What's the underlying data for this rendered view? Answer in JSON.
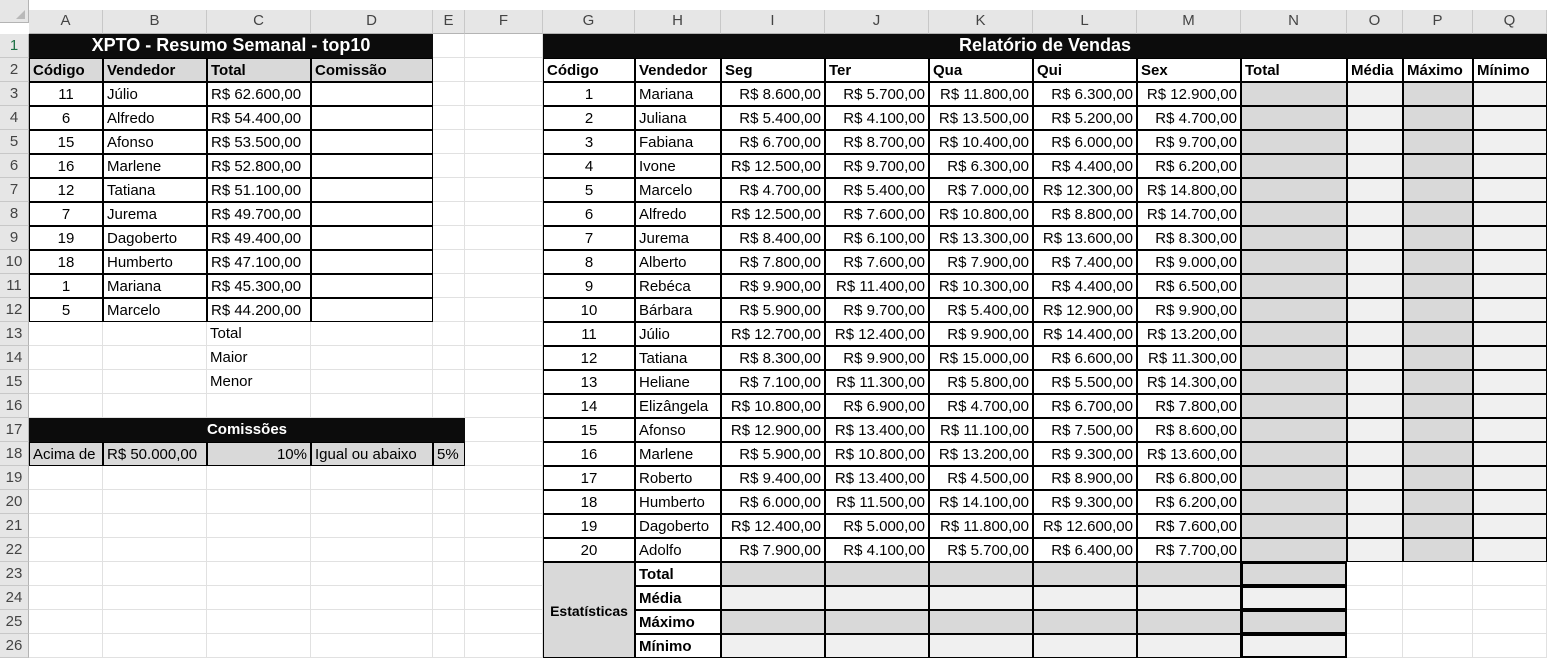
{
  "columns": [
    "A",
    "B",
    "C",
    "D",
    "E",
    "F",
    "G",
    "H",
    "I",
    "J",
    "K",
    "L",
    "M",
    "N",
    "O",
    "P",
    "Q"
  ],
  "rows": [
    "1",
    "2",
    "3",
    "4",
    "5",
    "6",
    "7",
    "8",
    "9",
    "10",
    "11",
    "12",
    "13",
    "14",
    "15",
    "16",
    "17",
    "18",
    "19",
    "20",
    "21",
    "22",
    "23",
    "24",
    "25",
    "26"
  ],
  "left_table": {
    "title": "XPTO - Resumo Semanal - top10",
    "headers": [
      "Código",
      "Vendedor",
      "Total",
      "Comissão"
    ],
    "rows": [
      [
        "11",
        "Júlio",
        "R$ 62.600,00",
        ""
      ],
      [
        "6",
        "Alfredo",
        "R$ 54.400,00",
        ""
      ],
      [
        "15",
        "Afonso",
        "R$ 53.500,00",
        ""
      ],
      [
        "16",
        "Marlene",
        "R$ 52.800,00",
        ""
      ],
      [
        "12",
        "Tatiana",
        "R$ 51.100,00",
        ""
      ],
      [
        "7",
        "Jurema",
        "R$ 49.700,00",
        ""
      ],
      [
        "19",
        "Dagoberto",
        "R$ 49.400,00",
        ""
      ],
      [
        "18",
        "Humberto",
        "R$ 47.100,00",
        ""
      ],
      [
        "1",
        "Mariana",
        "R$ 45.300,00",
        ""
      ],
      [
        "5",
        "Marcelo",
        "R$ 44.200,00",
        ""
      ]
    ],
    "summary_labels": [
      "Total",
      "Maior",
      "Menor"
    ]
  },
  "commissions": {
    "title": "Comissões",
    "above_label": "Acima de",
    "threshold": "R$ 50.000,00",
    "above_rate": "10%",
    "below_label": "Igual ou abaixo",
    "below_rate": "5%"
  },
  "sales_report": {
    "title": "Relatório de Vendas",
    "headers": [
      "Código",
      "Vendedor",
      "Seg",
      "Ter",
      "Qua",
      "Qui",
      "Sex",
      "Total",
      "Média",
      "Máximo",
      "Mínimo"
    ],
    "rows": [
      [
        "1",
        "Mariana",
        "R$ 8.600,00",
        "R$ 5.700,00",
        "R$ 11.800,00",
        "R$ 6.300,00",
        "R$ 12.900,00"
      ],
      [
        "2",
        "Juliana",
        "R$ 5.400,00",
        "R$ 4.100,00",
        "R$ 13.500,00",
        "R$ 5.200,00",
        "R$ 4.700,00"
      ],
      [
        "3",
        "Fabiana",
        "R$ 6.700,00",
        "R$ 8.700,00",
        "R$ 10.400,00",
        "R$ 6.000,00",
        "R$ 9.700,00"
      ],
      [
        "4",
        "Ivone",
        "R$ 12.500,00",
        "R$ 9.700,00",
        "R$ 6.300,00",
        "R$ 4.400,00",
        "R$ 6.200,00"
      ],
      [
        "5",
        "Marcelo",
        "R$ 4.700,00",
        "R$ 5.400,00",
        "R$ 7.000,00",
        "R$ 12.300,00",
        "R$ 14.800,00"
      ],
      [
        "6",
        "Alfredo",
        "R$ 12.500,00",
        "R$ 7.600,00",
        "R$ 10.800,00",
        "R$ 8.800,00",
        "R$ 14.700,00"
      ],
      [
        "7",
        "Jurema",
        "R$ 8.400,00",
        "R$ 6.100,00",
        "R$ 13.300,00",
        "R$ 13.600,00",
        "R$ 8.300,00"
      ],
      [
        "8",
        "Alberto",
        "R$ 7.800,00",
        "R$ 7.600,00",
        "R$ 7.900,00",
        "R$ 7.400,00",
        "R$ 9.000,00"
      ],
      [
        "9",
        "Rebéca",
        "R$ 9.900,00",
        "R$ 11.400,00",
        "R$ 10.300,00",
        "R$ 4.400,00",
        "R$ 6.500,00"
      ],
      [
        "10",
        "Bárbara",
        "R$ 5.900,00",
        "R$ 9.700,00",
        "R$ 5.400,00",
        "R$ 12.900,00",
        "R$ 9.900,00"
      ],
      [
        "11",
        "Júlio",
        "R$ 12.700,00",
        "R$ 12.400,00",
        "R$ 9.900,00",
        "R$ 14.400,00",
        "R$ 13.200,00"
      ],
      [
        "12",
        "Tatiana",
        "R$ 8.300,00",
        "R$ 9.900,00",
        "R$ 15.000,00",
        "R$ 6.600,00",
        "R$ 11.300,00"
      ],
      [
        "13",
        "Heliane",
        "R$ 7.100,00",
        "R$ 11.300,00",
        "R$ 5.800,00",
        "R$ 5.500,00",
        "R$ 14.300,00"
      ],
      [
        "14",
        "Elizângela",
        "R$ 10.800,00",
        "R$ 6.900,00",
        "R$ 4.700,00",
        "R$ 6.700,00",
        "R$ 7.800,00"
      ],
      [
        "15",
        "Afonso",
        "R$ 12.900,00",
        "R$ 13.400,00",
        "R$ 11.100,00",
        "R$ 7.500,00",
        "R$ 8.600,00"
      ],
      [
        "16",
        "Marlene",
        "R$ 5.900,00",
        "R$ 10.800,00",
        "R$ 13.200,00",
        "R$ 9.300,00",
        "R$ 13.600,00"
      ],
      [
        "17",
        "Roberto",
        "R$ 9.400,00",
        "R$ 13.400,00",
        "R$ 4.500,00",
        "R$ 8.900,00",
        "R$ 6.800,00"
      ],
      [
        "18",
        "Humberto",
        "R$ 6.000,00",
        "R$ 11.500,00",
        "R$ 14.100,00",
        "R$ 9.300,00",
        "R$ 6.200,00"
      ],
      [
        "19",
        "Dagoberto",
        "R$ 12.400,00",
        "R$ 5.000,00",
        "R$ 11.800,00",
        "R$ 12.600,00",
        "R$ 7.600,00"
      ],
      [
        "20",
        "Adolfo",
        "R$ 7.900,00",
        "R$ 4.100,00",
        "R$ 5.700,00",
        "R$ 6.400,00",
        "R$ 7.700,00"
      ]
    ],
    "stats_label": "Estatísticas",
    "stats_rows": [
      "Total",
      "Média",
      "Máximo",
      "Mínimo"
    ]
  },
  "colors": {
    "title_bg": "#0c0c0c",
    "header_bg": "#d9d9d9",
    "band_bg": "#f0f0f0",
    "selected_row_header": "#1e7145"
  }
}
